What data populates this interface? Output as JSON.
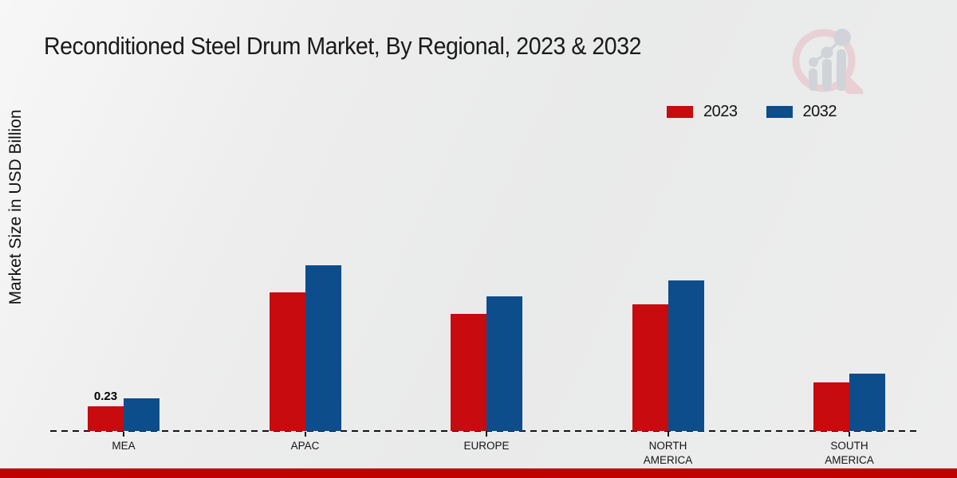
{
  "chart": {
    "title": "Reconditioned Steel Drum Market, By Regional, 2023 & 2032",
    "y_axis_label": "Market Size in USD Billion",
    "legend": {
      "position": "top-right",
      "items": [
        {
          "label": "2023",
          "color": "#c70b0e"
        },
        {
          "label": "2032",
          "color": "#0d4d8c"
        }
      ]
    },
    "watermark_icon": "market-research-magnifier-logo"
  },
  "chart_data": {
    "type": "bar",
    "title": "Reconditioned Steel Drum Market, By Regional, 2023 & 2032",
    "xlabel": "",
    "ylabel": "Market Size in USD Billion",
    "categories": [
      "MEA",
      "APAC",
      "EUROPE",
      "NORTH AMERICA",
      "SOUTH AMERICA"
    ],
    "series": [
      {
        "name": "2023",
        "color": "#c70b0e",
        "values": [
          0.23,
          1.29,
          1.09,
          1.18,
          0.45
        ]
      },
      {
        "name": "2032",
        "color": "#0d4d8c",
        "values": [
          0.3,
          1.54,
          1.25,
          1.4,
          0.53
        ]
      }
    ],
    "data_labels": [
      {
        "category": "MEA",
        "series": "2023",
        "text": "0.23"
      }
    ],
    "ylim": [
      0,
      1.8
    ],
    "grid": false,
    "y_ticks_visible": false,
    "x_axis_style": "dashed",
    "legend_position": "top-right"
  },
  "colors": {
    "background": "#ececec",
    "series_2023": "#c70b0e",
    "series_2032": "#0d4d8c",
    "bottom_stripe": "#c00000",
    "axis": "#141414"
  }
}
